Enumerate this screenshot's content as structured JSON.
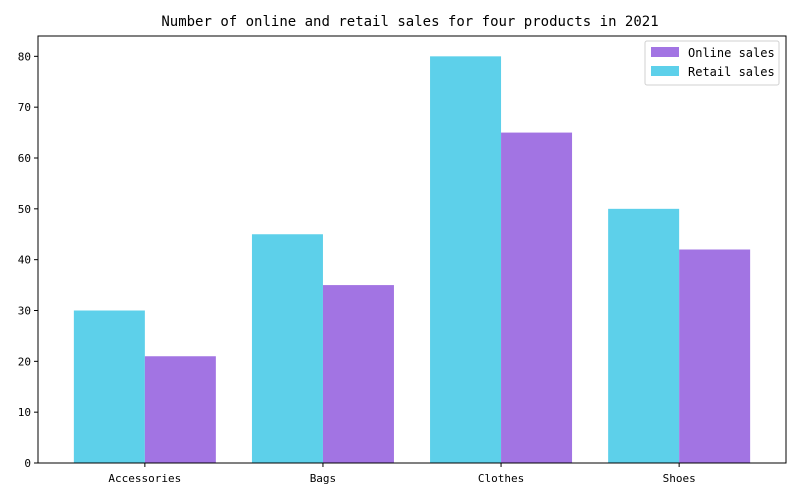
{
  "chart_data": {
    "type": "bar",
    "title": "Number of online and retail sales for four products in 2021",
    "xlabel": "",
    "ylabel": "",
    "categories": [
      "Accessories",
      "Bags",
      "Clothes",
      "Shoes"
    ],
    "series": [
      {
        "name": "Retail sales",
        "values": [
          30,
          45,
          80,
          50
        ],
        "color": "#5dd0ea"
      },
      {
        "name": "Online sales",
        "values": [
          21,
          35,
          65,
          42
        ],
        "color": "#a274e3"
      }
    ],
    "legend_order": [
      "Online sales",
      "Retail sales"
    ],
    "ylim": [
      0,
      84
    ],
    "yticks": [
      0,
      10,
      20,
      30,
      40,
      50,
      60,
      70,
      80
    ],
    "grid": false,
    "legend_position": "top-right"
  }
}
